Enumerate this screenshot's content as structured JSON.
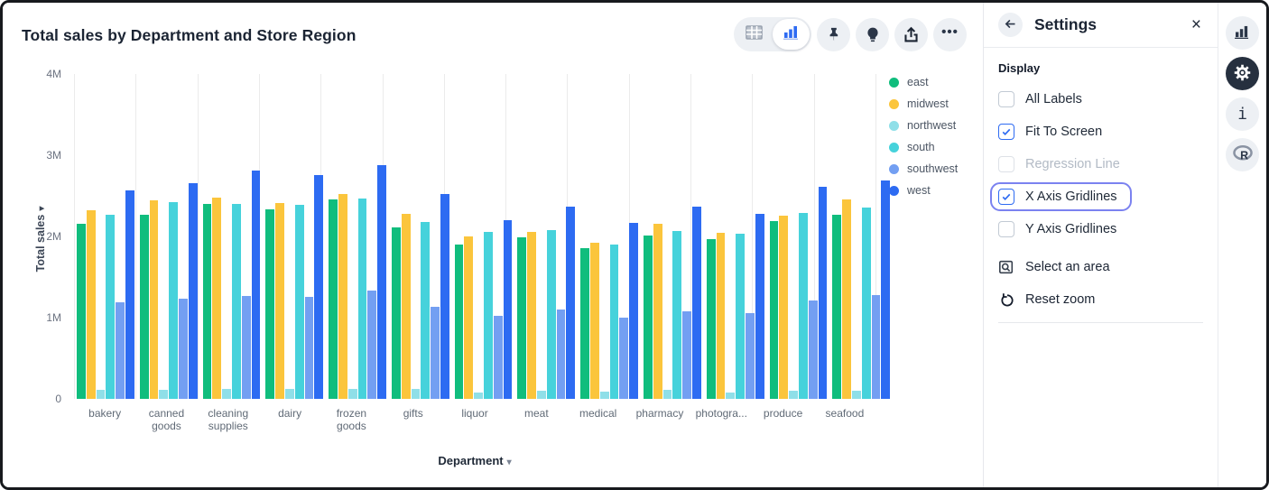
{
  "header": {
    "title": "Total sales by Department and Store Region",
    "toolbar": {
      "more_icon": "•••"
    }
  },
  "settings": {
    "title": "Settings",
    "close_icon": "×",
    "section_label": "Display",
    "checkboxes": [
      {
        "label": "All Labels",
        "checked": false,
        "disabled": false,
        "focused": false
      },
      {
        "label": "Fit To Screen",
        "checked": true,
        "disabled": false,
        "focused": false
      },
      {
        "label": "Regression Line",
        "checked": false,
        "disabled": true,
        "focused": false
      },
      {
        "label": "X Axis Gridlines",
        "checked": true,
        "disabled": false,
        "focused": true
      },
      {
        "label": "Y Axis Gridlines",
        "checked": false,
        "disabled": false,
        "focused": false
      }
    ],
    "actions": [
      {
        "label": "Select an area",
        "icon": "select-area-icon"
      },
      {
        "label": "Reset zoom",
        "icon": "reset-zoom-icon"
      }
    ]
  },
  "rail": {
    "items": [
      {
        "icon": "bar-chart-icon",
        "active": false
      },
      {
        "icon": "gear-icon",
        "active": true
      },
      {
        "icon": "info-icon",
        "active": false
      },
      {
        "icon": "r-logo-icon",
        "active": false
      }
    ]
  },
  "chart_data": {
    "type": "bar",
    "title": "Total sales by Department and Store Region",
    "xlabel": "Department",
    "ylabel": "Total sales",
    "unit": "millions",
    "ylim": [
      0,
      4
    ],
    "y_ticks": [
      "4M",
      "3M",
      "2M",
      "1M",
      "0"
    ],
    "x_gridlines": true,
    "y_gridlines": false,
    "legend_position": "right",
    "categories": [
      "bakery",
      "canned goods",
      "cleaning supplies",
      "dairy",
      "frozen goods",
      "gifts",
      "liquor",
      "meat",
      "medical",
      "pharmacy",
      "photogra...",
      "produce",
      "seafood"
    ],
    "series": [
      {
        "name": "east",
        "color": "#10bd7d",
        "values": [
          2.16,
          2.27,
          2.4,
          2.33,
          2.46,
          2.11,
          1.9,
          1.99,
          1.85,
          2.01,
          1.97,
          2.19,
          2.27
        ]
      },
      {
        "name": "midwest",
        "color": "#fbc53c",
        "values": [
          2.32,
          2.44,
          2.48,
          2.41,
          2.52,
          2.28,
          2.0,
          2.06,
          1.92,
          2.15,
          2.04,
          2.26,
          2.45
        ]
      },
      {
        "name": "northwest",
        "color": "#8fdfe8",
        "values": [
          0.11,
          0.11,
          0.12,
          0.12,
          0.12,
          0.12,
          0.08,
          0.1,
          0.09,
          0.11,
          0.08,
          0.1,
          0.1
        ]
      },
      {
        "name": "south",
        "color": "#46d2db",
        "values": [
          2.27,
          2.42,
          2.4,
          2.39,
          2.47,
          2.18,
          2.06,
          2.08,
          1.9,
          2.07,
          2.03,
          2.29,
          2.35
        ]
      },
      {
        "name": "southwest",
        "color": "#739ff2",
        "values": [
          1.19,
          1.23,
          1.27,
          1.25,
          1.33,
          1.13,
          1.02,
          1.1,
          1.0,
          1.08,
          1.05,
          1.21,
          1.28
        ]
      },
      {
        "name": "west",
        "color": "#2d6bf2",
        "values": [
          2.57,
          2.65,
          2.81,
          2.76,
          2.88,
          2.52,
          2.2,
          2.37,
          2.17,
          2.37,
          2.28,
          2.61,
          2.69
        ]
      }
    ],
    "arrows": {
      "y_axis": "▾",
      "x_axis": "▾"
    }
  }
}
